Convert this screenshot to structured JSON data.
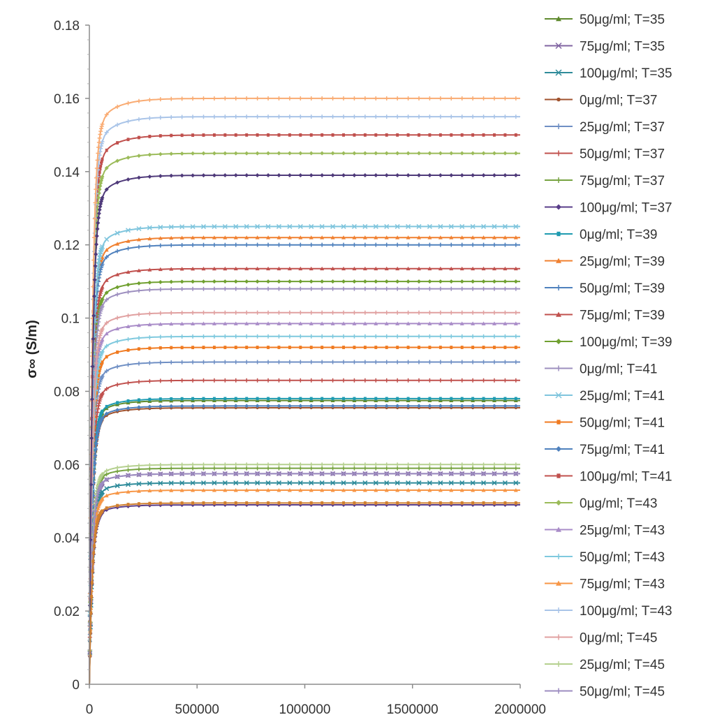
{
  "chart_data": {
    "type": "line",
    "ylabel": "σ∞ (S/m)",
    "xlabel": "",
    "xlim": [
      0,
      2000000
    ],
    "ylim": [
      0,
      0.18
    ],
    "y_ticks": [
      "0",
      "0.02",
      "0.04",
      "0.06",
      "0.08",
      "0.1",
      "0.12",
      "0.14",
      "0.16",
      "0.18"
    ],
    "x_ticks": [
      "0",
      "500000",
      "1000000",
      "1500000",
      "2000000"
    ],
    "grid": false,
    "legend_position": "right",
    "series": [
      {
        "name": "50μg/ml; T=35",
        "color": "#5f8a2e",
        "marker": "triangle",
        "plateau": 0.0775
      },
      {
        "name": "75μg/ml; T=35",
        "color": "#8064a2",
        "marker": "x",
        "plateau": 0.0575
      },
      {
        "name": "100μg/ml; T=35",
        "color": "#2e8b9a",
        "marker": "x",
        "plateau": 0.055
      },
      {
        "name": "0μg/ml; T=37",
        "color": "#a0522d",
        "marker": "circle",
        "plateau": 0.0755
      },
      {
        "name": "25μg/ml; T=37",
        "color": "#6f8fc4",
        "marker": "plus",
        "plateau": 0.088
      },
      {
        "name": "50μg/ml; T=37",
        "color": "#c0504d",
        "marker": "plus",
        "plateau": 0.083
      },
      {
        "name": "75μg/ml; T=37",
        "color": "#77a341",
        "marker": "plus",
        "plateau": 0.059
      },
      {
        "name": "100μg/ml; T=37",
        "color": "#5a3e8a",
        "marker": "diamond",
        "plateau": 0.049
      },
      {
        "name": "0μg/ml; T=39",
        "color": "#1f9bb0",
        "marker": "square",
        "plateau": 0.078
      },
      {
        "name": "25μg/ml; T=39",
        "color": "#f08030",
        "marker": "triangle",
        "plateau": 0.122
      },
      {
        "name": "50μg/ml; T=39",
        "color": "#4f81bd",
        "marker": "plus",
        "plateau": 0.12
      },
      {
        "name": "75μg/ml; T=39",
        "color": "#c0504d",
        "marker": "triangle",
        "plateau": 0.1135
      },
      {
        "name": "100μg/ml; T=39",
        "color": "#70a030",
        "marker": "diamond",
        "plateau": 0.11
      },
      {
        "name": "0μg/ml; T=41",
        "color": "#9d8fbf",
        "marker": "plus",
        "plateau": 0.108
      },
      {
        "name": "25μg/ml; T=41",
        "color": "#7fc5dd",
        "marker": "x",
        "plateau": 0.125
      },
      {
        "name": "50μg/ml; T=41",
        "color": "#f07a20",
        "marker": "square",
        "plateau": 0.092
      },
      {
        "name": "75μg/ml; T=41",
        "color": "#4f81bd",
        "marker": "diamond",
        "plateau": 0.076
      },
      {
        "name": "100μg/ml; T=41",
        "color": "#c0504d",
        "marker": "square",
        "plateau": 0.15
      },
      {
        "name": "0μg/ml; T=43",
        "color": "#9bbb59",
        "marker": "diamond",
        "plateau": 0.145
      },
      {
        "name": "25μg/ml; T=43",
        "color": "#a98cc8",
        "marker": "triangle",
        "plateau": 0.0985
      },
      {
        "name": "50μg/ml; T=43",
        "color": "#7fc9de",
        "marker": "plus",
        "plateau": 0.095
      },
      {
        "name": "75μg/ml; T=43",
        "color": "#f79646",
        "marker": "triangle",
        "plateau": 0.053
      },
      {
        "name": "100μg/ml; T=43",
        "color": "#a9c4e8",
        "marker": "plus",
        "plateau": 0.155
      },
      {
        "name": "0μg/ml; T=45",
        "color": "#e0a0a0",
        "marker": "plus",
        "plateau": 0.1015
      },
      {
        "name": "25μg/ml; T=45",
        "color": "#b5d08f",
        "marker": "plus",
        "plateau": 0.06
      },
      {
        "name": "50μg/ml; T=45",
        "color": "#9c8cc0",
        "marker": "plus",
        "plateau": 0.0575
      },
      {
        "name": "",
        "color": "#f9ab72",
        "marker": "plus",
        "plateau": 0.16
      },
      {
        "name": "",
        "color": "#4f3a7a",
        "marker": "diamond",
        "plateau": 0.139
      },
      {
        "name": "",
        "color": "#d08030",
        "marker": "square",
        "plateau": 0.0495
      }
    ]
  }
}
